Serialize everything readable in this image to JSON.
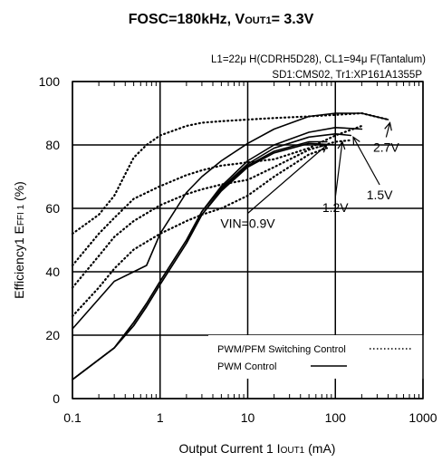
{
  "chart_data": {
    "type": "line",
    "title": "FOSC=180kHz, VOUT1= 3.3V",
    "title_parts": [
      "FOSC=180kHz, V",
      "OUT1",
      "= 3.3V"
    ],
    "notes": [
      "L1=22μ H(CDRH5D28), CL1=94μ F(Tantalum)",
      "SD1:CMS02, Tr1:XP161A1355P"
    ],
    "x_scale": "log",
    "xlim": [
      0.1,
      1000
    ],
    "ylim": [
      0,
      100
    ],
    "grid": true,
    "xlabel_parts": [
      "Output Current 1 I",
      "OUT1",
      " (mA)"
    ],
    "ylabel_parts": [
      "Efficiency1 E",
      "FFI 1",
      " (%)"
    ],
    "x_ticks": [
      {
        "v": 0.1,
        "label": "0.1"
      },
      {
        "v": 1,
        "label": "1"
      },
      {
        "v": 10,
        "label": "10"
      },
      {
        "v": 100,
        "label": "100"
      },
      {
        "v": 1000,
        "label": "1000"
      }
    ],
    "y_ticks": [
      {
        "v": 0,
        "label": "0"
      },
      {
        "v": 20,
        "label": "20"
      },
      {
        "v": 40,
        "label": "40"
      },
      {
        "v": 60,
        "label": "60"
      },
      {
        "v": 80,
        "label": "80"
      },
      {
        "v": 100,
        "label": "100"
      }
    ],
    "legend": [
      {
        "label": "PWM/PFM Switching Control",
        "style": "dotted"
      },
      {
        "label": "PWM  Control",
        "style": "solid"
      }
    ],
    "series": [
      {
        "style": "dotted",
        "x": [
          0.1,
          0.2,
          0.3,
          0.5,
          0.7,
          1,
          2,
          3,
          5,
          10,
          20,
          50,
          100,
          200,
          400
        ],
        "y": [
          52,
          58,
          64,
          76,
          80,
          83,
          86,
          87,
          87.5,
          88,
          88.5,
          89,
          89.5,
          90,
          88
        ]
      },
      {
        "style": "dotted",
        "x": [
          0.1,
          0.2,
          0.3,
          0.5,
          1,
          2,
          3,
          5,
          10,
          20,
          50,
          100,
          200
        ],
        "y": [
          42,
          52,
          57,
          63,
          67,
          70.5,
          72,
          73.5,
          74.5,
          75.5,
          79,
          83,
          86
        ]
      },
      {
        "style": "dotted",
        "x": [
          0.1,
          0.2,
          0.3,
          0.5,
          1,
          2,
          3,
          5,
          10,
          20,
          50,
          100,
          150
        ],
        "y": [
          35,
          45,
          51,
          56,
          61,
          64.5,
          66,
          67.5,
          69,
          73,
          78.5,
          81,
          81.5
        ]
      },
      {
        "style": "dotted",
        "x": [
          0.1,
          0.2,
          0.3,
          0.5,
          1,
          2,
          3,
          5,
          10,
          20,
          50,
          80
        ],
        "y": [
          26,
          35,
          41,
          47,
          52,
          56,
          58,
          60,
          64,
          70,
          77,
          79
        ]
      },
      {
        "style": "solid",
        "x": [
          0.1,
          0.3,
          0.5,
          0.7,
          1,
          2,
          3,
          5,
          10,
          20,
          50,
          100,
          200,
          400
        ],
        "y": [
          22,
          37,
          40,
          42,
          52,
          65,
          70,
          75,
          80.5,
          85,
          89,
          90,
          90,
          88
        ]
      },
      {
        "style": "solid",
        "x": [
          0.1,
          0.3,
          0.5,
          0.7,
          1,
          2,
          3,
          5,
          10,
          20,
          50,
          100,
          200
        ],
        "y": [
          6,
          16,
          24,
          30,
          37,
          50,
          59,
          67,
          75,
          80,
          84,
          85.5,
          85
        ]
      },
      {
        "style": "solid",
        "x": [
          0.1,
          0.3,
          0.5,
          0.7,
          1,
          2,
          3,
          5,
          10,
          20,
          50,
          100,
          150
        ],
        "y": [
          6,
          16,
          24,
          30,
          37,
          50,
          59,
          66.5,
          74,
          79,
          82.5,
          83.5,
          83
        ]
      },
      {
        "style": "solid",
        "x": [
          0.1,
          0.3,
          0.5,
          0.7,
          1,
          2,
          3,
          5,
          10,
          20,
          50,
          80
        ],
        "y": [
          6,
          16,
          23,
          29,
          36,
          49,
          58,
          66,
          73.5,
          78,
          81,
          81
        ]
      },
      {
        "style": "solid",
        "x": [
          0.1,
          0.3,
          0.5,
          0.7,
          1,
          2,
          3,
          5,
          10,
          20,
          50,
          100
        ],
        "y": [
          6,
          16,
          23,
          29,
          36,
          49,
          58,
          65.5,
          73,
          77.5,
          80.5,
          80
        ]
      }
    ],
    "annotations": [
      {
        "label": "VIN=0.9V",
        "anchor_x": 10,
        "anchor_y": 55,
        "target_x": 80,
        "target_y": 80
      },
      {
        "label": "1.2V",
        "anchor_x": 100,
        "anchor_y": 60,
        "target_x": 120,
        "target_y": 81
      },
      {
        "label": "1.5V",
        "anchor_x": 320,
        "anchor_y": 64,
        "target_x": 160,
        "target_y": 82.5
      },
      {
        "label": "2.7V",
        "anchor_x": 380,
        "anchor_y": 79,
        "target_x": 420,
        "target_y": 87
      }
    ]
  }
}
